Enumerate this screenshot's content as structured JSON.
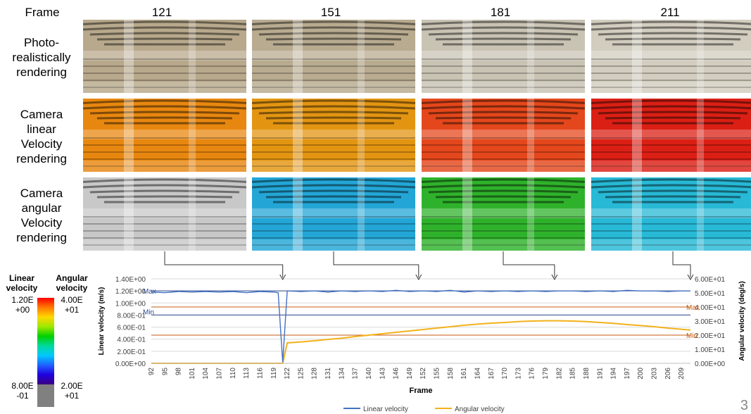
{
  "header": {
    "frame_label": "Frame",
    "frames": [
      "121",
      "151",
      "181",
      "211"
    ]
  },
  "rows": [
    {
      "lines": [
        "Photo-",
        "realistically",
        "rendering"
      ]
    },
    {
      "lines": [
        "Camera",
        "linear",
        "Velocity",
        "rendering"
      ]
    },
    {
      "lines": [
        "Camera",
        "angular",
        "Velocity",
        "rendering"
      ]
    }
  ],
  "tiles": {
    "photo": [
      "#b8a98c",
      "#b8ab90",
      "#c9c3b4",
      "#d2cdbf"
    ],
    "linear": [
      "#e8870f",
      "#e39512",
      "#e4471b",
      "#db1f14"
    ],
    "angular": [
      "#c8c8c8",
      "#23a6d6",
      "#2fb22b",
      "#27b9d6"
    ]
  },
  "legend": {
    "linear_title": [
      "Linear",
      "velocity"
    ],
    "angular_title": [
      "Angular",
      "velocity"
    ],
    "linear_max": [
      "1.20E",
      "+00"
    ],
    "angular_max": [
      "4.00E",
      "+01"
    ],
    "linear_min": [
      "8.00E",
      "-01"
    ],
    "angular_min": [
      "2.00E",
      "+01"
    ],
    "colors": [
      "#ff0000",
      "#ff7a00",
      "#ffd700",
      "#9ee800",
      "#00d000",
      "#00d8a0",
      "#00c8ff",
      "#2060ff",
      "#2000e0",
      "#3a0080"
    ],
    "min_color": "#808080"
  },
  "chart_data": {
    "type": "line",
    "xlabel": "Frame",
    "ylabel_left": "Linear velocity (m/s)",
    "ylabel_right": "Angular velocity (deg/s)",
    "x_ticks": [
      92,
      95,
      98,
      101,
      104,
      107,
      110,
      113,
      116,
      119,
      122,
      125,
      128,
      131,
      134,
      137,
      140,
      143,
      146,
      149,
      152,
      155,
      158,
      161,
      164,
      167,
      170,
      173,
      176,
      179,
      182,
      185,
      188,
      191,
      194,
      197,
      200,
      203,
      206,
      209
    ],
    "xlim": [
      92,
      211
    ],
    "ylim_left": [
      0,
      1.4
    ],
    "ylim_right": [
      0,
      60
    ],
    "left_ticks": [
      "0.00E+00",
      "2.00E-01",
      "4.00E-01",
      "6.00E-01",
      "8.00E-01",
      "1.00E+00",
      "1.20E+00",
      "1.40E+00"
    ],
    "right_ticks": [
      "0.00E+00",
      "1.00E+01",
      "2.00E+01",
      "3.00E+01",
      "4.00E+01",
      "5.00E+01",
      "6.00E+01"
    ],
    "annotations": {
      "left_max": "Max",
      "left_min": "Min",
      "right_max": "Max",
      "right_min": "Min"
    },
    "series": [
      {
        "name": "Linear velocity",
        "color": "#4472c4",
        "x": [
          92,
          95,
          98,
          101,
          104,
          107,
          110,
          113,
          116,
          119,
          120,
          121,
          122,
          125,
          128,
          131,
          134,
          137,
          140,
          143,
          146,
          149,
          152,
          155,
          158,
          161,
          164,
          167,
          170,
          173,
          176,
          179,
          182,
          185,
          188,
          191,
          194,
          197,
          200,
          203,
          206,
          209,
          211
        ],
        "y": [
          1.18,
          1.17,
          1.19,
          1.18,
          1.19,
          1.18,
          1.19,
          1.17,
          1.19,
          1.18,
          1.17,
          0.02,
          1.2,
          1.19,
          1.2,
          1.18,
          1.2,
          1.19,
          1.2,
          1.19,
          1.21,
          1.19,
          1.2,
          1.19,
          1.21,
          1.18,
          1.2,
          1.19,
          1.2,
          1.19,
          1.2,
          1.19,
          1.2,
          1.2,
          1.19,
          1.2,
          1.19,
          1.21,
          1.2,
          1.2,
          1.19,
          1.2,
          1.2
        ]
      },
      {
        "name": "Angular velocity",
        "color": "#f2b21b",
        "x": [
          92,
          100,
          110,
          119,
          121,
          122,
          125,
          128,
          131,
          134,
          137,
          140,
          143,
          146,
          149,
          152,
          155,
          158,
          161,
          164,
          167,
          170,
          173,
          176,
          179,
          182,
          185,
          188,
          191,
          194,
          197,
          200,
          203,
          206,
          209,
          211
        ],
        "y": [
          0,
          0,
          0,
          0,
          0,
          14.5,
          15.2,
          16.0,
          17.0,
          17.8,
          19.0,
          20.0,
          21.0,
          22.0,
          23.0,
          24.0,
          25.0,
          26.0,
          27.0,
          27.8,
          28.5,
          29.0,
          29.6,
          30.0,
          30.2,
          30.2,
          30.0,
          29.6,
          29.0,
          28.4,
          27.5,
          26.8,
          26.0,
          25.0,
          24.2,
          23.6
        ]
      }
    ],
    "legend_position": "bottom-center"
  },
  "page_number": "3"
}
